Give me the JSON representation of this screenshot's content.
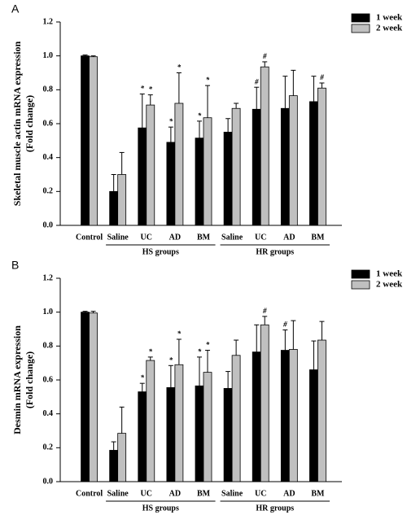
{
  "chart_data": [
    {
      "type": "bar",
      "panel": "A",
      "y_label": [
        "Skeletal muscle actin mRNA expression",
        "(Fold change)"
      ],
      "categories": [
        "Control",
        "Saline",
        "UC",
        "AD",
        "BM",
        "Saline",
        "UC",
        "AD",
        "BM"
      ],
      "group_labels": [
        "HS groups",
        "HR groups"
      ],
      "series": [
        {
          "name": "1 week",
          "color": "#000000",
          "values": [
            1.0,
            0.2,
            0.575,
            0.49,
            0.515,
            0.55,
            0.685,
            0.69,
            0.73
          ],
          "errors": [
            0.005,
            0.1,
            0.2,
            0.09,
            0.1,
            0.08,
            0.13,
            0.19,
            0.15
          ],
          "annotations": [
            null,
            null,
            "*",
            "*",
            "*",
            null,
            "#",
            null,
            null
          ]
        },
        {
          "name": "2 week",
          "color": "#c0c0c0",
          "values": [
            0.995,
            0.3,
            0.71,
            0.72,
            0.635,
            0.69,
            0.935,
            0.765,
            0.81
          ],
          "errors": [
            0.005,
            0.13,
            0.06,
            0.18,
            0.19,
            0.03,
            0.03,
            0.15,
            0.03
          ],
          "annotations": [
            null,
            null,
            "*",
            "*",
            "*",
            null,
            "#",
            null,
            "#"
          ]
        }
      ],
      "ylim": [
        0,
        1.2
      ],
      "yticks": [
        {
          "value": 0,
          "label": "0.0"
        },
        0.2,
        0.4,
        0.6,
        0.8,
        {
          "value": 1,
          "label": "1.0"
        },
        1.2
      ],
      "legend": "upper right"
    },
    {
      "type": "bar",
      "panel": "B",
      "y_label": [
        "Desmin mRNA expression",
        "(Fold change)"
      ],
      "categories": [
        "Control",
        "Saline",
        "UC",
        "AD",
        "BM",
        "Saline",
        "UC",
        "AD",
        "BM"
      ],
      "group_labels": [
        "HS groups",
        "HR groups"
      ],
      "series": [
        {
          "name": "1 week",
          "color": "#000000",
          "values": [
            1.0,
            0.185,
            0.53,
            0.555,
            0.565,
            0.55,
            0.765,
            0.775,
            0.66
          ],
          "errors": [
            0.005,
            0.05,
            0.05,
            0.13,
            0.17,
            0.1,
            0.16,
            0.12,
            0.17
          ],
          "annotations": [
            null,
            null,
            "*",
            "*",
            "*",
            null,
            null,
            "#",
            null
          ]
        },
        {
          "name": "2 week",
          "color": "#c0c0c0",
          "values": [
            0.995,
            0.285,
            0.715,
            0.69,
            0.645,
            0.745,
            0.925,
            0.78,
            0.835
          ],
          "errors": [
            0.01,
            0.155,
            0.02,
            0.15,
            0.13,
            0.09,
            0.05,
            0.17,
            0.11
          ],
          "annotations": [
            null,
            null,
            "*",
            "*",
            "*",
            null,
            "#",
            null,
            null
          ]
        }
      ],
      "ylim": [
        0,
        1.2
      ],
      "yticks": [
        {
          "value": 0,
          "label": "0.0"
        },
        0.2,
        0.4,
        0.6,
        0.8,
        {
          "value": 1,
          "label": "1.0"
        },
        1.2
      ],
      "legend": "upper right"
    }
  ]
}
